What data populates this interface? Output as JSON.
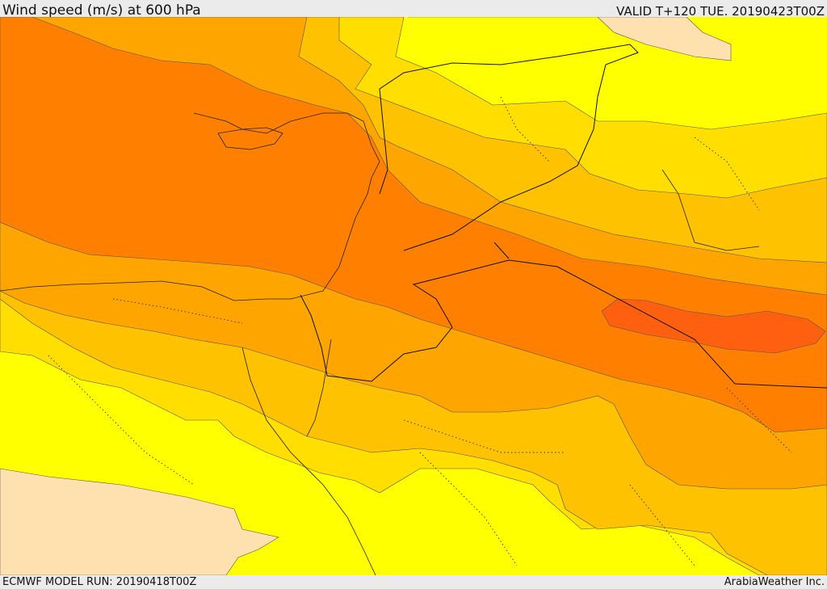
{
  "header": {
    "title": "Wind speed (m/s) at 600 hPa",
    "valid": "VALID T+120 TUE. 20190423T00Z"
  },
  "footer": {
    "model_run": "ECMWF MODEL RUN: 20190418T00Z",
    "credit": "ArabiaWeather Inc."
  },
  "palette": {
    "background": "#ffff00",
    "calm": "#ffe1b0",
    "band_1": "#ffde00",
    "band_2": "#ffc200",
    "band_3": "#ffa500",
    "band_4": "#ff8000",
    "band_5": "#ff6010"
  }
}
